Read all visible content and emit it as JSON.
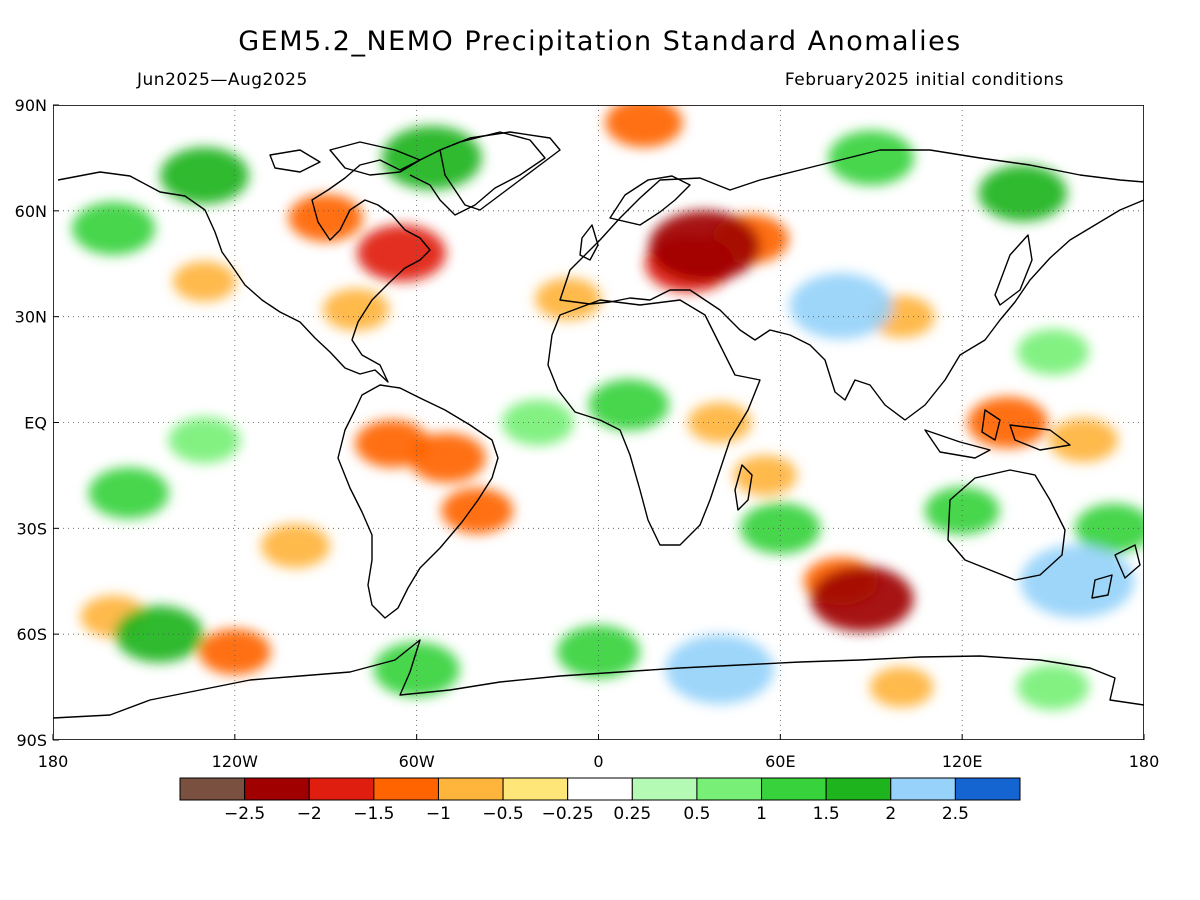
{
  "title": "GEM5.2_NEMO Precipitation Standard Anomalies",
  "period": "Jun2025—Aug2025",
  "initial_conditions": "February2025 initial conditions",
  "axes": {
    "x_ticks": [
      "180",
      "120W",
      "60W",
      "0",
      "60E",
      "120E",
      "180"
    ],
    "x_values": [
      -180,
      -120,
      -60,
      0,
      60,
      120,
      180
    ],
    "y_ticks": [
      "90N",
      "60N",
      "30N",
      "EQ",
      "30S",
      "60S",
      "90S"
    ],
    "y_values": [
      90,
      60,
      30,
      0,
      -30,
      -60,
      -90
    ],
    "xlim": [
      -180,
      180
    ],
    "ylim": [
      -90,
      90
    ],
    "grid": "dotted"
  },
  "legend": {
    "colors": [
      "#7a5040",
      "#a00000",
      "#e01e10",
      "#ff6400",
      "#ffb43c",
      "#ffe678",
      "#ffffff",
      "#b4fab4",
      "#78f078",
      "#37d23c",
      "#1eb41e",
      "#96d2fa",
      "#1464d2"
    ],
    "labels": [
      "−2.5",
      "−2",
      "−1.5",
      "−1",
      "−0.5",
      "−0.25",
      "0.25",
      "0.5",
      "1",
      "1.5",
      "2",
      "2.5"
    ]
  },
  "chart_data": {
    "type": "heatmap",
    "title": "GEM5.2_NEMO Precipitation Standard Anomalies",
    "xlabel": "",
    "ylabel": "",
    "xlim": [
      -180,
      180
    ],
    "ylim": [
      -90,
      90
    ],
    "grid": true,
    "legend": "bottom",
    "levels": [
      -2.5,
      -2,
      -1.5,
      -1,
      -0.5,
      -0.25,
      0.25,
      0.5,
      1,
      1.5,
      2,
      2.5
    ],
    "regions": [
      {
        "lon": 35,
        "lat": 50,
        "value": -2.4
      },
      {
        "lon": 30,
        "lat": 45,
        "value": -1.6
      },
      {
        "lon": 50,
        "lat": 52,
        "value": -1.2
      },
      {
        "lon": -65,
        "lat": 48,
        "value": -1.6
      },
      {
        "lon": -90,
        "lat": 58,
        "value": -1.1
      },
      {
        "lon": 15,
        "lat": 85,
        "value": -1.2
      },
      {
        "lon": 87,
        "lat": -50,
        "value": -2.1
      },
      {
        "lon": 80,
        "lat": -45,
        "value": -1.1
      },
      {
        "lon": -50,
        "lat": -10,
        "value": -1.2
      },
      {
        "lon": -68,
        "lat": -6,
        "value": -1.1
      },
      {
        "lon": -40,
        "lat": -25,
        "value": -1.0
      },
      {
        "lon": 135,
        "lat": 0,
        "value": -1.3
      },
      {
        "lon": 160,
        "lat": -5,
        "value": -0.9
      },
      {
        "lon": -120,
        "lat": -65,
        "value": -1.0
      },
      {
        "lon": -100,
        "lat": -35,
        "value": -0.9
      },
      {
        "lon": -80,
        "lat": 32,
        "value": -0.8
      },
      {
        "lon": -130,
        "lat": 40,
        "value": -0.7
      },
      {
        "lon": 100,
        "lat": 30,
        "value": -0.8
      },
      {
        "lon": 55,
        "lat": -15,
        "value": -0.7
      },
      {
        "lon": -160,
        "lat": -55,
        "value": -0.8
      },
      {
        "lon": 40,
        "lat": 0,
        "value": -0.7
      },
      {
        "lon": -10,
        "lat": 35,
        "value": -0.8
      },
      {
        "lon": 100,
        "lat": -75,
        "value": -0.7
      },
      {
        "lon": 40,
        "lat": -70,
        "value": 2.3
      },
      {
        "lon": 158,
        "lat": -45,
        "value": 2.5
      },
      {
        "lon": -130,
        "lat": 70,
        "value": 1.6
      },
      {
        "lon": -55,
        "lat": 75,
        "value": 2.0
      },
      {
        "lon": 90,
        "lat": 75,
        "value": 1.5
      },
      {
        "lon": 140,
        "lat": 65,
        "value": 1.6
      },
      {
        "lon": -160,
        "lat": 55,
        "value": 1.4
      },
      {
        "lon": 170,
        "lat": -30,
        "value": 1.2
      },
      {
        "lon": -155,
        "lat": -20,
        "value": 1.3
      },
      {
        "lon": -145,
        "lat": -60,
        "value": 1.6
      },
      {
        "lon": 0,
        "lat": -65,
        "value": 1.4
      },
      {
        "lon": 80,
        "lat": 33,
        "value": 2.1
      },
      {
        "lon": 60,
        "lat": -30,
        "value": 1.3
      },
      {
        "lon": 10,
        "lat": 5,
        "value": 1.3
      },
      {
        "lon": -20,
        "lat": 0,
        "value": 1.0
      },
      {
        "lon": -130,
        "lat": -5,
        "value": 1.0
      },
      {
        "lon": 150,
        "lat": 20,
        "value": 1.0
      },
      {
        "lon": 120,
        "lat": -25,
        "value": 1.1
      },
      {
        "lon": -60,
        "lat": -70,
        "value": 1.5
      },
      {
        "lon": 150,
        "lat": -75,
        "value": 1.0
      }
    ]
  }
}
